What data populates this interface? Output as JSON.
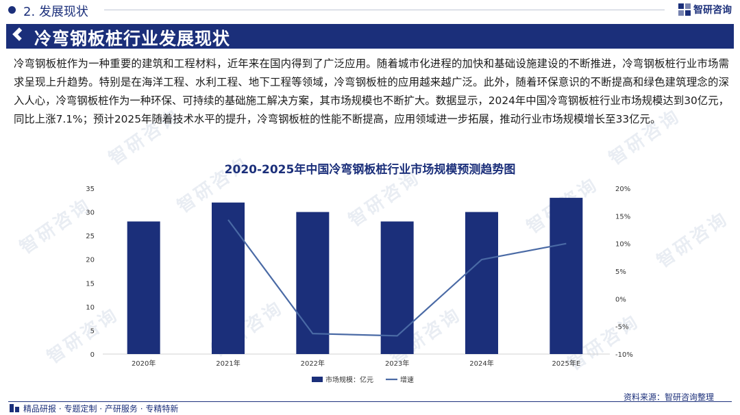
{
  "section": {
    "number_title": "2. 发展现状"
  },
  "logo": {
    "text": "智研咨询"
  },
  "banner": {
    "title": "冷弯钢板桩行业发展现状"
  },
  "paragraph": "冷弯钢板桩作为一种重要的建筑和工程材料，近年来在国内得到了广泛应用。随着城市化进程的加快和基础设施建设的不断推进，冷弯钢板桩行业市场需求呈现上升趋势。特别是在海洋工程、水利工程、地下工程等领域，冷弯钢板桩的应用越来越广泛。此外，随着环保意识的不断提高和绿色建筑理念的深入人心，冷弯钢板桩作为一种环保、可持续的基础施工解决方案，其市场规模也不断扩大。数据显示，2024年中国冷弯钢板桩行业市场规模达到30亿元，同比上涨7.1%；预计2025年随着技术水平的提升，冷弯钢板桩的性能不断提高，应用领域进一步拓展，推动行业市场规模增长至33亿元。",
  "chart_data": {
    "type": "bar+line",
    "title": "2020-2025年中国冷弯钢板桩行业市场规模预测趋势图",
    "categories": [
      "2020年",
      "2021年",
      "2022年",
      "2023年",
      "2024年",
      "2025年E"
    ],
    "series": [
      {
        "name": "市场规模：亿元",
        "type": "bar",
        "axis": "left",
        "values": [
          28,
          32,
          30,
          28,
          30,
          33
        ]
      },
      {
        "name": "增速",
        "type": "line",
        "axis": "right",
        "values": [
          null,
          14.3,
          -6.3,
          -6.7,
          7.1,
          10.0
        ]
      }
    ],
    "left_axis": {
      "min": 0,
      "max": 35,
      "ticks": [
        "0",
        "5",
        "10",
        "15",
        "20",
        "25",
        "30",
        "35"
      ]
    },
    "right_axis": {
      "min": -10,
      "max": 20,
      "ticks": [
        "-10%",
        "-5%",
        "0%",
        "5%",
        "10%",
        "15%",
        "20%"
      ]
    },
    "colors": {
      "bar": "#1b2f7a",
      "line": "#4a6aa5"
    }
  },
  "watermark": {
    "text": "智研咨询"
  },
  "footer": {
    "left_text": "精品研报 · 专题定制 · 产研服务 · 专精特新",
    "source": "资料来源：智研咨询整理"
  }
}
